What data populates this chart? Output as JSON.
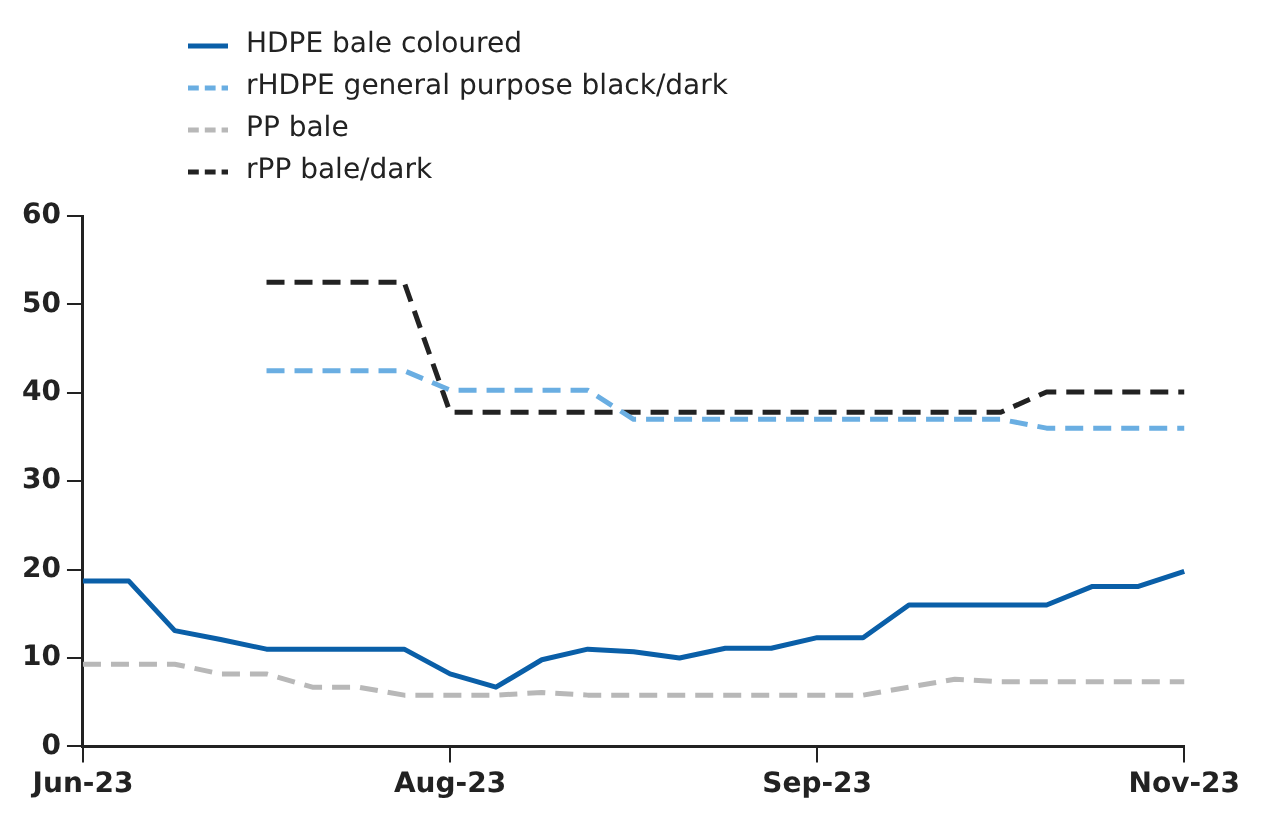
{
  "chart_data": {
    "type": "line",
    "categories": [
      "Jun-23",
      null,
      null,
      null,
      null,
      null,
      null,
      null,
      "Aug-23",
      null,
      null,
      null,
      null,
      null,
      null,
      null,
      "Sep-23",
      null,
      null,
      null,
      null,
      null,
      null,
      null,
      "Nov-23"
    ],
    "series": [
      {
        "name": "HDPE bale coloured",
        "color": "#0a5fa8",
        "line_style": "solid",
        "values": [
          18.7,
          18.7,
          13.1,
          12.1,
          11.0,
          11.0,
          11.0,
          11.0,
          8.2,
          6.7,
          9.8,
          11.0,
          10.7,
          10.0,
          11.1,
          11.1,
          12.3,
          12.3,
          16.0,
          16.0,
          16.0,
          16.0,
          18.1,
          18.1,
          19.8
        ]
      },
      {
        "name": "rHDPE general purpose black/dark",
        "color": "#6aaee2",
        "line_style": "dashed",
        "values": [
          null,
          null,
          null,
          null,
          42.5,
          42.5,
          42.5,
          42.5,
          40.3,
          40.3,
          40.3,
          40.3,
          37.0,
          37.0,
          37.0,
          37.0,
          37.0,
          37.0,
          37.0,
          37.0,
          37.0,
          36.0,
          36.0,
          36.0,
          36.0
        ]
      },
      {
        "name": "PP bale",
        "color": "#b8b8b8",
        "line_style": "dashed",
        "values": [
          9.3,
          9.3,
          9.3,
          8.2,
          8.2,
          6.7,
          6.7,
          5.8,
          5.8,
          5.8,
          6.1,
          5.8,
          5.8,
          5.8,
          5.8,
          5.8,
          5.8,
          5.8,
          6.7,
          7.6,
          7.3,
          7.3,
          7.3,
          7.3,
          7.3
        ]
      },
      {
        "name": "rPP bale/dark",
        "color": "#222222",
        "line_style": "dashed",
        "values": [
          null,
          null,
          null,
          null,
          52.5,
          52.5,
          52.5,
          52.5,
          37.8,
          37.8,
          37.8,
          37.8,
          37.8,
          37.8,
          37.8,
          37.8,
          37.8,
          37.8,
          37.8,
          37.8,
          37.8,
          40.1,
          40.1,
          40.1,
          40.1
        ]
      }
    ],
    "ylim": [
      0,
      60
    ],
    "yticks": [
      0,
      10,
      20,
      30,
      40,
      50,
      60
    ],
    "grid": false,
    "legend": "top",
    "marker": "none"
  }
}
